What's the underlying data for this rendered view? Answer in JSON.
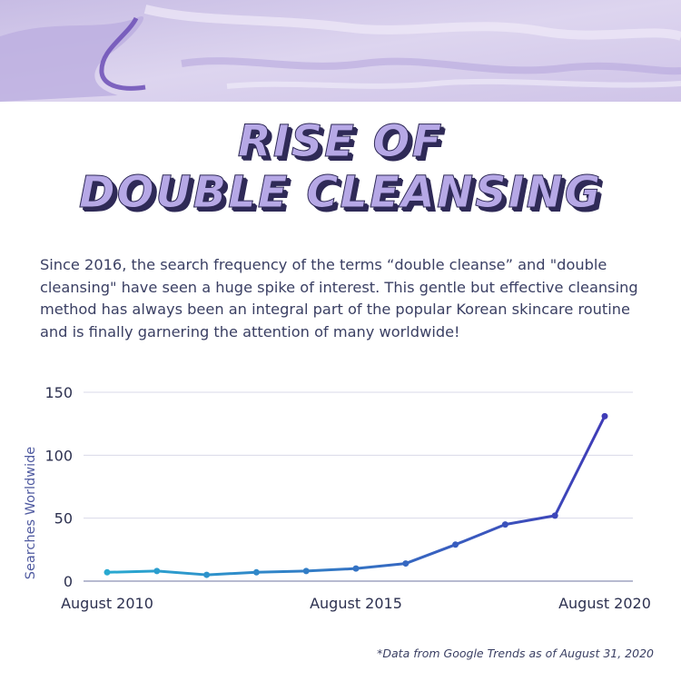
{
  "title": {
    "line1": "RISE OF",
    "line2": "DOUBLE CLEANSING"
  },
  "description": "Since 2016, the search frequency of the terms “double cleanse” and \"double cleansing\" have seen a huge spike of interest. This gentle but effective cleansing method has always been an integral part of the popular Korean skincare routine and is finally garnering the attention of many worldwide!",
  "footnote": "*Data from Google Trends as of August 31, 2020",
  "colors": {
    "banner": "#c9bde3",
    "title_fill": "#b6a8e6",
    "title_shadow": "#2f2a57",
    "text": "#3a3f63",
    "line_start": "#29a9d0",
    "line_end": "#3f3cb7",
    "grid": "#d9dae8"
  },
  "chart_data": {
    "type": "line",
    "title": "",
    "xlabel": "",
    "ylabel": "Searches Worldwide",
    "ylim": [
      0,
      150
    ],
    "yticks": [
      0,
      50,
      100,
      150
    ],
    "grid": true,
    "x_tick_labels": [
      "August 2010",
      "August 2015",
      "August 2020"
    ],
    "x": [
      2010,
      2011,
      2012,
      2013,
      2014,
      2015,
      2016,
      2017,
      2018,
      2019,
      2020
    ],
    "series": [
      {
        "values": [
          7,
          8,
          5,
          7,
          8,
          10,
          14,
          29,
          45,
          52,
          131
        ]
      }
    ]
  }
}
